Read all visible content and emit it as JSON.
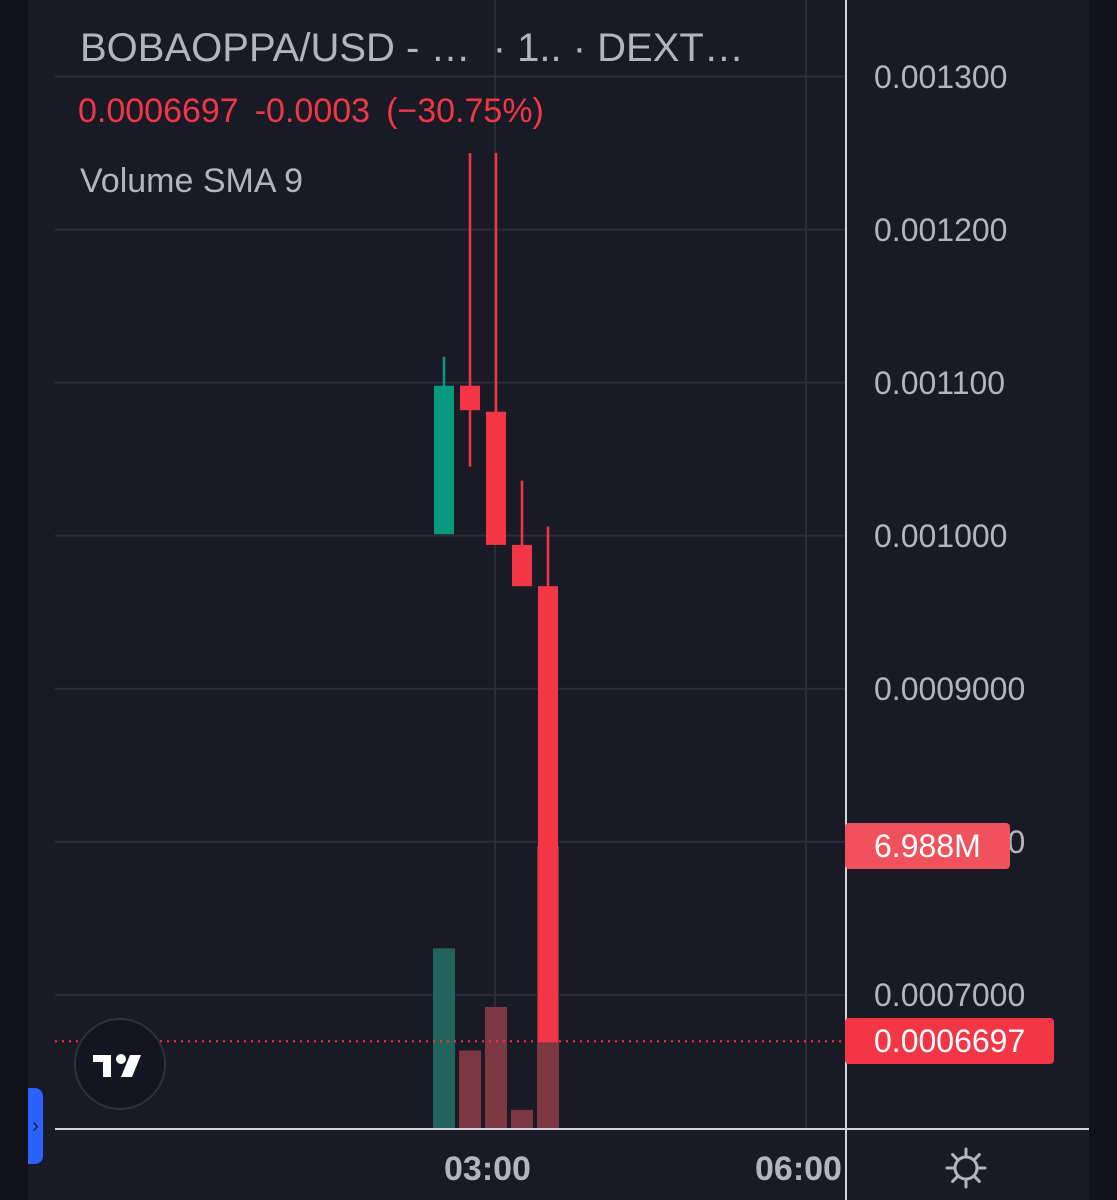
{
  "legend": {
    "symbol": "BOBAOPPA/USD - …",
    "interval": "· 1..",
    "exchange": "· DEXT…",
    "last_price": "0.0006697",
    "change": "-0.0003",
    "change_percent": "(−30.75%)",
    "indicator": "Volume SMA 9"
  },
  "price_tags": {
    "volume_value": "6.988M",
    "last_price": "0.0006697"
  },
  "colors": {
    "up": "#089981",
    "down": "#f23645",
    "volume_up": "#22645c",
    "volume_down": "#7c3743",
    "background": "#181a25",
    "grid": "#2a2d3a",
    "axis_text": "#b2b5be"
  },
  "chart_data": {
    "type": "candlestick",
    "x_axis_ticks": [
      "03:00",
      "06:00"
    ],
    "y_axis_ticks": [
      "0.001300",
      "0.001200",
      "0.001100",
      "0.001000",
      "0.0009000",
      "0.0008000",
      "0.0007000"
    ],
    "ylim": [
      0.000613,
      0.00135
    ],
    "candles": [
      {
        "open": 0.001001,
        "high": 0.001117,
        "low": 0.001001,
        "close": 0.001098
      },
      {
        "open": 0.001098,
        "high": 0.00125,
        "low": 0.001045,
        "close": 0.001082
      },
      {
        "open": 0.001081,
        "high": 0.00125,
        "low": 0.000994,
        "close": 0.000994
      },
      {
        "open": 0.000994,
        "high": 0.001036,
        "low": 0.000967,
        "close": 0.000967
      },
      {
        "open": 0.000967,
        "high": 0.001006,
        "low": 0.000669,
        "close": 0.000669
      }
    ],
    "volumes": [
      {
        "value": 4.45,
        "direction": "up"
      },
      {
        "value": 1.92,
        "direction": "down"
      },
      {
        "value": 3.0,
        "direction": "down"
      },
      {
        "value": 0.45,
        "direction": "down"
      },
      {
        "value": 6.988,
        "direction": "down"
      }
    ],
    "volume_max": 6.988,
    "last_price_line": 0.0006697,
    "grid": true
  }
}
